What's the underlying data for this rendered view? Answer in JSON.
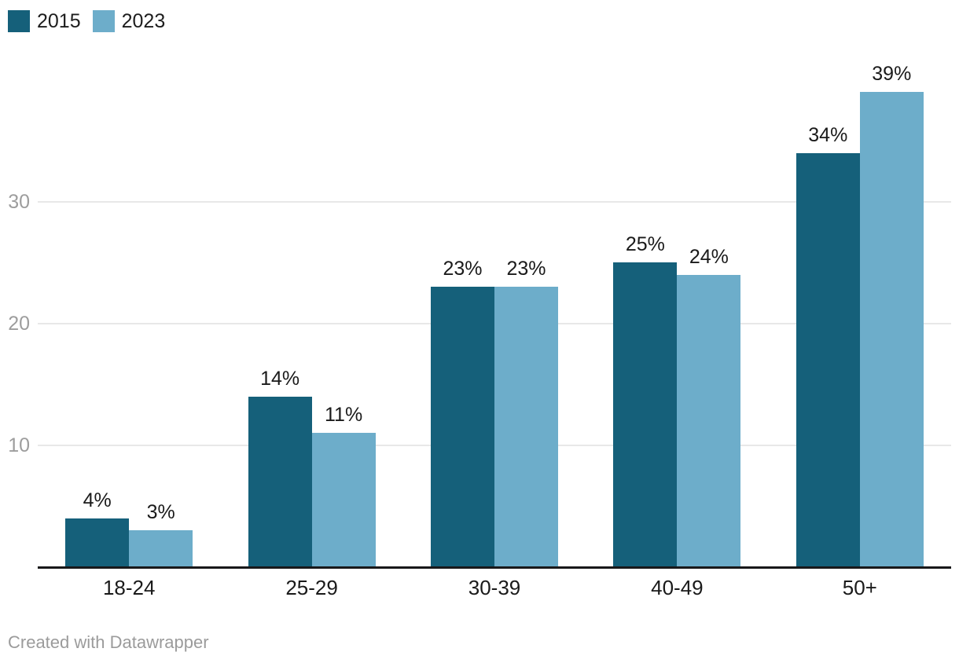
{
  "chart_data": {
    "type": "bar",
    "categories": [
      "18-24",
      "25-29",
      "30-39",
      "40-49",
      "50+"
    ],
    "series": [
      {
        "name": "2015",
        "color": "#15607a",
        "values": [
          4,
          14,
          23,
          25,
          34
        ]
      },
      {
        "name": "2023",
        "color": "#6dadca",
        "values": [
          3,
          11,
          23,
          24,
          39
        ]
      }
    ],
    "value_suffix": "%",
    "yticks": [
      10,
      20,
      30
    ],
    "ylim": [
      0,
      42
    ],
    "grid": true,
    "legend_position": "top-left",
    "xlabel": "",
    "ylabel": ""
  },
  "legend": {
    "items": [
      {
        "label": "2015",
        "color": "#15607a"
      },
      {
        "label": "2023",
        "color": "#6dadca"
      }
    ]
  },
  "footer": {
    "credit": "Created with Datawrapper"
  },
  "colors": {
    "grid": "#e8e8e8",
    "axis_line": "#18181a",
    "tick_label": "#9d9d9d",
    "value_label": "#1a1a1a",
    "credit": "#9b9b9b",
    "background": "#ffffff"
  }
}
